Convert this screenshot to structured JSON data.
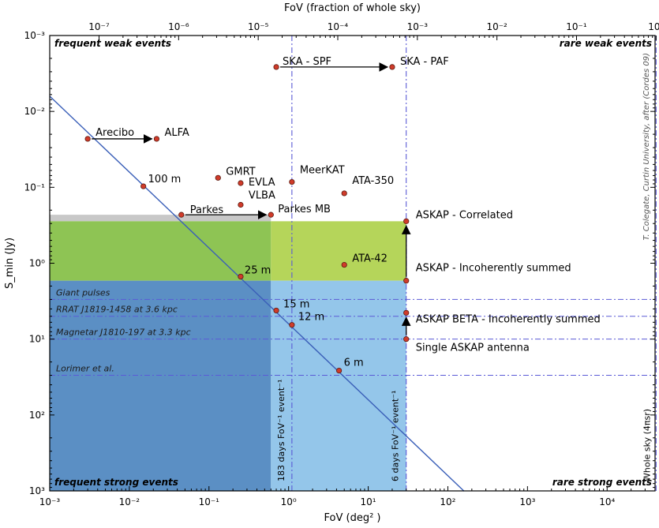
{
  "chart_data": {
    "type": "scatter",
    "title": "",
    "xlabel": "FoV (deg² )",
    "x2label": "FoV (fraction of whole sky)",
    "ylabel": "S_min (Jy)",
    "x_scale": "log",
    "y_scale": "log",
    "y_inverted": true,
    "xlim": [
      0.001,
      40000
    ],
    "ylim": [
      0.001,
      1000
    ],
    "x2lim": [
      2.4e-08,
      0.97
    ],
    "x_ticks": [
      0.001,
      0.01,
      0.1,
      1,
      10,
      100,
      1000,
      10000
    ],
    "x_tick_labels": [
      "10⁻³",
      "10⁻²",
      "10⁻¹",
      "10⁰",
      "10¹",
      "10²",
      "10³",
      "10⁴"
    ],
    "y_ticks": [
      0.001,
      0.01,
      0.1,
      1,
      10,
      100,
      1000
    ],
    "y_tick_labels": [
      "10⁻³",
      "10⁻²",
      "10⁻¹",
      "10⁰",
      "10¹",
      "10²",
      "10³"
    ],
    "x2_ticks": [
      1e-07,
      1e-06,
      1e-05,
      0.0001,
      0.001,
      0.01,
      0.1,
      1
    ],
    "x2_tick_labels": [
      "10⁻⁷",
      "10⁻⁶",
      "10⁻⁵",
      "10⁻⁴",
      "10⁻³",
      "10⁻²",
      "10⁻¹",
      "10⁰"
    ],
    "points": [
      {
        "label": "SKA - SPF",
        "x": 0.7,
        "y": 0.0026
      },
      {
        "label": "SKA - PAF",
        "x": 20,
        "y": 0.0026
      },
      {
        "label": "Arecibo",
        "x": 0.003,
        "y": 0.023
      },
      {
        "label": "ALFA",
        "x": 0.022,
        "y": 0.023
      },
      {
        "label": "100 m",
        "x": 0.015,
        "y": 0.097
      },
      {
        "label": "GMRT",
        "x": 0.13,
        "y": 0.075
      },
      {
        "label": "EVLA",
        "x": 0.25,
        "y": 0.088
      },
      {
        "label": "VLBA",
        "x": 0.25,
        "y": 0.17
      },
      {
        "label": "MeerKAT",
        "x": 1.1,
        "y": 0.085
      },
      {
        "label": "ATA-350",
        "x": 5,
        "y": 0.12
      },
      {
        "label": "Parkes",
        "x": 0.045,
        "y": 0.23
      },
      {
        "label": "Parkes MB",
        "x": 0.6,
        "y": 0.23
      },
      {
        "label": "ASKAP - Correlated",
        "x": 30,
        "y": 0.28
      },
      {
        "label": "ATA-42",
        "x": 5,
        "y": 1.05
      },
      {
        "label": "25 m",
        "x": 0.25,
        "y": 1.5
      },
      {
        "label": "ASKAP - Incoherently summed",
        "x": 30,
        "y": 1.7
      },
      {
        "label": "15 m",
        "x": 0.7,
        "y": 4.2
      },
      {
        "label": "12 m",
        "x": 1.1,
        "y": 6.5
      },
      {
        "label": "ASKAP BETA - Incoherently summed",
        "x": 30,
        "y": 4.5
      },
      {
        "label": "Single ASKAP antenna",
        "x": 30,
        "y": 10
      },
      {
        "label": "6 m",
        "x": 4.3,
        "y": 26
      }
    ],
    "arrows": [
      {
        "from": "SKA - SPF",
        "to": "SKA - PAF"
      },
      {
        "from": "Arecibo",
        "to": "ALFA"
      },
      {
        "from": "Parkes",
        "to": "Parkes MB"
      },
      {
        "from": "Single ASKAP antenna",
        "to": "ASKAP BETA - Incoherently summed"
      },
      {
        "from": "ASKAP - Incoherently summed",
        "to": "ASKAP - Correlated"
      }
    ],
    "sensitivity_line": {
      "x": [
        0.001,
        160
      ],
      "y": 0.0063,
      "slope": 1
    },
    "regions": [
      {
        "label": "Giant pulses",
        "y": 3.0
      },
      {
        "label": "RRAT J1819-1458 at 3.6 kpc",
        "y": 5.0
      },
      {
        "label": "Magnetar J1810-197 at 3.3 kpc",
        "y": 10
      },
      {
        "label": "Lorimer et al.",
        "y": 30
      }
    ],
    "vertical_lines": [
      {
        "label": "183 days FoV⁻¹ event⁻¹",
        "x": 1.1
      },
      {
        "label": "6 days FoV⁻¹ event⁻¹",
        "x": 30
      },
      {
        "label": "Whole sky (4πsr)",
        "x": 41253
      }
    ],
    "shaded_bands": [
      {
        "color": "#c8c8c8",
        "x": [
          0.001,
          0.6
        ],
        "y": [
          0.23,
          0.28
        ]
      },
      {
        "color": "#8ec454",
        "x": [
          0.001,
          0.6
        ],
        "y": [
          0.28,
          1.7
        ]
      },
      {
        "color": "#b5d55a",
        "x": [
          0.6,
          30
        ],
        "y": [
          0.28,
          1.7
        ]
      },
      {
        "color": "#5b8fc4",
        "x": [
          0.001,
          0.6
        ],
        "y": [
          1.7,
          1000
        ]
      },
      {
        "color": "#94c6ea",
        "x": [
          0.6,
          30
        ],
        "y": [
          1.7,
          1000
        ]
      }
    ],
    "corner_labels": {
      "top_left": "frequent weak events",
      "top_right": "rare weak events",
      "bottom_left": "frequent strong events",
      "bottom_right": "rare strong events"
    },
    "credit": "T. Colegate, Curtin University, after (Cordes 09)",
    "colors": {
      "point": "#d03b2a",
      "line": "#3a5fb8",
      "vline": "#5b5bd6",
      "hline": "#5b5bd6"
    }
  }
}
